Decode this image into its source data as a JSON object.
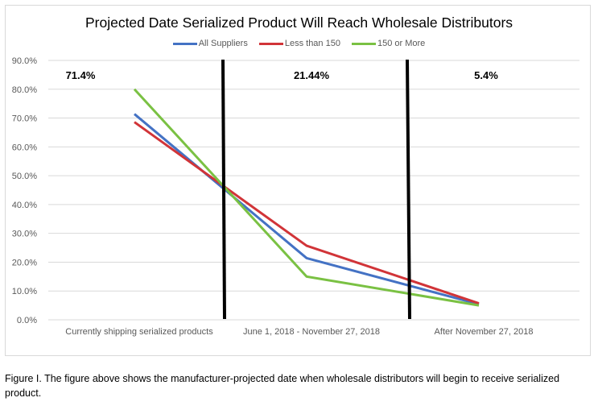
{
  "chart_data": {
    "type": "line",
    "title": "Projected Date Serialized Product Will Reach Wholesale Distributors",
    "categories": [
      "Currently shipping serialized products",
      "June 1, 2018 - November 27, 2018",
      "After November 27, 2018"
    ],
    "series": [
      {
        "name": "All Suppliers",
        "color": "#4472c4",
        "values": [
          71.4,
          21.4,
          5.4
        ]
      },
      {
        "name": "Less than 150",
        "color": "#d13438",
        "values": [
          68.6,
          25.7,
          5.7
        ]
      },
      {
        "name": "150 or More",
        "color": "#7ac143",
        "values": [
          80.0,
          15.0,
          5.0
        ]
      }
    ],
    "ylim": [
      0,
      90
    ],
    "yticks": [
      "0.0%",
      "10.0%",
      "20.0%",
      "30.0%",
      "40.0%",
      "50.0%",
      "60.0%",
      "70.0%",
      "80.0%",
      "90.0%"
    ],
    "grid": true,
    "legend_position": "top",
    "annotations": [
      "71.4%",
      "21.44%",
      "5.4%"
    ],
    "divider_color": "#000000"
  },
  "caption": "Figure I. The figure above shows the manufacturer-projected date when wholesale distributors will begin to receive serialized product."
}
